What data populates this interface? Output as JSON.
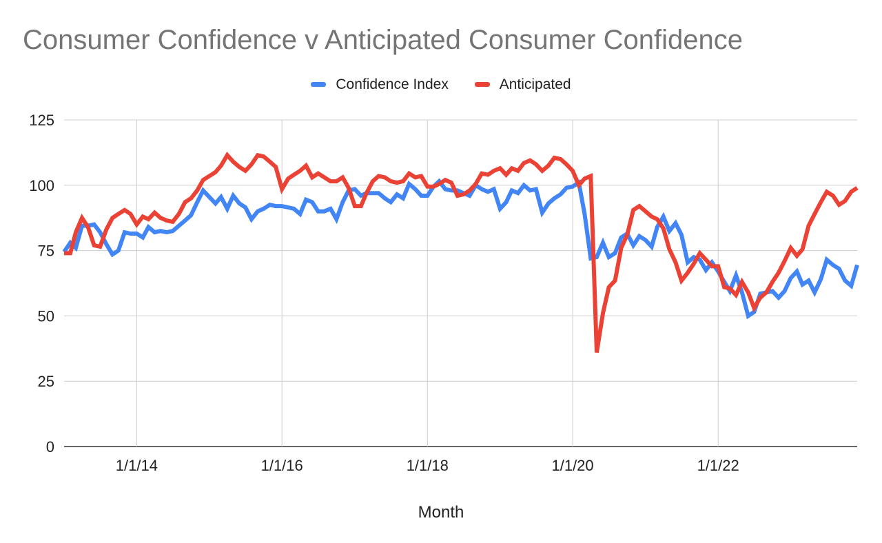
{
  "chart_data": {
    "type": "line",
    "title": "Consumer Confidence v Anticipated Consumer Confidence",
    "xlabel": "Month",
    "ylabel": "",
    "ylim": [
      0,
      125
    ],
    "y_ticks": [
      0,
      25,
      50,
      75,
      100,
      125
    ],
    "x_range": [
      "2013-01-01",
      "2023-12-01"
    ],
    "x_ticks": [
      {
        "date": "2014-01-01",
        "label": "1/1/14"
      },
      {
        "date": "2016-01-01",
        "label": "1/1/16"
      },
      {
        "date": "2018-01-01",
        "label": "1/1/18"
      },
      {
        "date": "2020-01-01",
        "label": "1/1/20"
      },
      {
        "date": "2022-01-01",
        "label": "1/1/22"
      }
    ],
    "grid": true,
    "legend_position": "top",
    "series": [
      {
        "name": "Confidence Index",
        "color": "#4285F4",
        "points": [
          [
            "2013-01-01",
            74.5
          ],
          [
            "2013-02-01",
            78
          ],
          [
            "2013-03-01",
            76
          ],
          [
            "2013-04-01",
            84.5
          ],
          [
            "2013-05-01",
            84.5
          ],
          [
            "2013-06-01",
            85
          ],
          [
            "2013-07-01",
            82
          ],
          [
            "2013-08-01",
            77.5
          ],
          [
            "2013-09-01",
            73.5
          ],
          [
            "2013-10-01",
            75
          ],
          [
            "2013-11-01",
            82
          ],
          [
            "2013-12-01",
            81.5
          ],
          [
            "2014-01-01",
            81.5
          ],
          [
            "2014-02-01",
            80
          ],
          [
            "2014-03-01",
            84
          ],
          [
            "2014-04-01",
            82
          ],
          [
            "2014-05-01",
            82.5
          ],
          [
            "2014-06-01",
            82
          ],
          [
            "2014-07-01",
            82.5
          ],
          [
            "2014-08-01",
            84.5
          ],
          [
            "2014-09-01",
            86.5
          ],
          [
            "2014-10-01",
            88.5
          ],
          [
            "2014-11-01",
            93.5
          ],
          [
            "2014-12-01",
            98
          ],
          [
            "2015-01-01",
            95.5
          ],
          [
            "2015-02-01",
            93
          ],
          [
            "2015-03-01",
            95.5
          ],
          [
            "2015-04-01",
            91
          ],
          [
            "2015-05-01",
            96
          ],
          [
            "2015-06-01",
            93
          ],
          [
            "2015-07-01",
            91.5
          ],
          [
            "2015-08-01",
            87
          ],
          [
            "2015-09-01",
            90
          ],
          [
            "2015-10-01",
            91
          ],
          [
            "2015-11-01",
            92.5
          ],
          [
            "2015-12-01",
            92
          ],
          [
            "2016-01-01",
            92
          ],
          [
            "2016-02-01",
            91.5
          ],
          [
            "2016-03-01",
            91
          ],
          [
            "2016-04-01",
            89
          ],
          [
            "2016-05-01",
            94.5
          ],
          [
            "2016-06-01",
            93.5
          ],
          [
            "2016-07-01",
            90
          ],
          [
            "2016-08-01",
            90
          ],
          [
            "2016-09-01",
            91
          ],
          [
            "2016-10-01",
            87
          ],
          [
            "2016-11-01",
            93.5
          ],
          [
            "2016-12-01",
            98
          ],
          [
            "2017-01-01",
            98.5
          ],
          [
            "2017-02-01",
            96
          ],
          [
            "2017-03-01",
            97
          ],
          [
            "2017-04-01",
            97
          ],
          [
            "2017-05-01",
            97
          ],
          [
            "2017-06-01",
            95
          ],
          [
            "2017-07-01",
            93.5
          ],
          [
            "2017-08-01",
            96.5
          ],
          [
            "2017-09-01",
            95
          ],
          [
            "2017-10-01",
            100.5
          ],
          [
            "2017-11-01",
            98.5
          ],
          [
            "2017-12-01",
            96
          ],
          [
            "2018-01-01",
            96
          ],
          [
            "2018-02-01",
            99.5
          ],
          [
            "2018-03-01",
            101.5
          ],
          [
            "2018-04-01",
            98.5
          ],
          [
            "2018-05-01",
            98
          ],
          [
            "2018-06-01",
            98
          ],
          [
            "2018-07-01",
            97
          ],
          [
            "2018-08-01",
            96
          ],
          [
            "2018-09-01",
            100
          ],
          [
            "2018-10-01",
            98.5
          ],
          [
            "2018-11-01",
            97.5
          ],
          [
            "2018-12-01",
            98.5
          ],
          [
            "2019-01-01",
            91
          ],
          [
            "2019-02-01",
            93.5
          ],
          [
            "2019-03-01",
            98
          ],
          [
            "2019-04-01",
            97
          ],
          [
            "2019-05-01",
            100
          ],
          [
            "2019-06-01",
            98
          ],
          [
            "2019-07-01",
            98.5
          ],
          [
            "2019-08-01",
            89.5
          ],
          [
            "2019-09-01",
            93
          ],
          [
            "2019-10-01",
            95
          ],
          [
            "2019-11-01",
            96.5
          ],
          [
            "2019-12-01",
            99
          ],
          [
            "2020-01-01",
            99.5
          ],
          [
            "2020-02-01",
            101
          ],
          [
            "2020-03-01",
            89
          ],
          [
            "2020-04-01",
            72
          ],
          [
            "2020-05-01",
            72.5
          ],
          [
            "2020-06-01",
            78
          ],
          [
            "2020-07-01",
            72.5
          ],
          [
            "2020-08-01",
            74
          ],
          [
            "2020-09-01",
            80
          ],
          [
            "2020-10-01",
            81.5
          ],
          [
            "2020-11-01",
            77
          ],
          [
            "2020-12-01",
            80.5
          ],
          [
            "2021-01-01",
            79
          ],
          [
            "2021-02-01",
            76.5
          ],
          [
            "2021-03-01",
            84
          ],
          [
            "2021-04-01",
            88
          ],
          [
            "2021-05-01",
            82.5
          ],
          [
            "2021-06-01",
            85.5
          ],
          [
            "2021-07-01",
            81
          ],
          [
            "2021-08-01",
            70.5
          ],
          [
            "2021-09-01",
            72.5
          ],
          [
            "2021-10-01",
            71.5
          ],
          [
            "2021-11-01",
            67.5
          ],
          [
            "2021-12-01",
            70.5
          ],
          [
            "2022-01-01",
            67
          ],
          [
            "2022-02-01",
            63
          ],
          [
            "2022-03-01",
            59.5
          ],
          [
            "2022-04-01",
            65.5
          ],
          [
            "2022-05-01",
            59
          ],
          [
            "2022-06-01",
            50
          ],
          [
            "2022-07-01",
            51.5
          ],
          [
            "2022-08-01",
            58.5
          ],
          [
            "2022-09-01",
            59
          ],
          [
            "2022-10-01",
            59.5
          ],
          [
            "2022-11-01",
            57
          ],
          [
            "2022-12-01",
            59.5
          ],
          [
            "2023-01-01",
            64.5
          ],
          [
            "2023-02-01",
            67
          ],
          [
            "2023-03-01",
            62
          ],
          [
            "2023-04-01",
            63.5
          ],
          [
            "2023-05-01",
            59
          ],
          [
            "2023-06-01",
            64
          ],
          [
            "2023-07-01",
            71.5
          ],
          [
            "2023-08-01",
            69.5
          ],
          [
            "2023-09-01",
            68
          ],
          [
            "2023-10-01",
            63.5
          ],
          [
            "2023-11-01",
            61.5
          ],
          [
            "2023-12-01",
            69.5
          ]
        ]
      },
      {
        "name": "Anticipated",
        "color": "#EA4335",
        "points": [
          [
            "2013-01-01",
            74
          ],
          [
            "2013-02-01",
            74
          ],
          [
            "2013-03-01",
            82
          ],
          [
            "2013-04-01",
            87.5
          ],
          [
            "2013-05-01",
            84
          ],
          [
            "2013-06-01",
            77
          ],
          [
            "2013-07-01",
            76.5
          ],
          [
            "2013-08-01",
            83
          ],
          [
            "2013-09-01",
            87.5
          ],
          [
            "2013-10-01",
            89
          ],
          [
            "2013-11-01",
            90.5
          ],
          [
            "2013-12-01",
            89
          ],
          [
            "2014-01-01",
            85
          ],
          [
            "2014-02-01",
            88
          ],
          [
            "2014-03-01",
            87
          ],
          [
            "2014-04-01",
            89.5
          ],
          [
            "2014-05-01",
            87.5
          ],
          [
            "2014-06-01",
            86.5
          ],
          [
            "2014-07-01",
            86
          ],
          [
            "2014-08-01",
            89
          ],
          [
            "2014-09-01",
            93.5
          ],
          [
            "2014-10-01",
            95
          ],
          [
            "2014-11-01",
            98
          ],
          [
            "2014-12-01",
            102
          ],
          [
            "2015-01-01",
            103.5
          ],
          [
            "2015-02-01",
            105
          ],
          [
            "2015-03-01",
            107.5
          ],
          [
            "2015-04-01",
            111.5
          ],
          [
            "2015-05-01",
            109
          ],
          [
            "2015-06-01",
            107
          ],
          [
            "2015-07-01",
            105.5
          ],
          [
            "2015-08-01",
            108
          ],
          [
            "2015-09-01",
            111.5
          ],
          [
            "2015-10-01",
            111
          ],
          [
            "2015-11-01",
            109
          ],
          [
            "2015-12-01",
            107
          ],
          [
            "2016-01-01",
            98.5
          ],
          [
            "2016-02-01",
            102.5
          ],
          [
            "2016-03-01",
            104
          ],
          [
            "2016-04-01",
            105.5
          ],
          [
            "2016-05-01",
            107.5
          ],
          [
            "2016-06-01",
            103
          ],
          [
            "2016-07-01",
            104.5
          ],
          [
            "2016-08-01",
            103
          ],
          [
            "2016-09-01",
            101.5
          ],
          [
            "2016-10-01",
            101.5
          ],
          [
            "2016-11-01",
            103
          ],
          [
            "2016-12-01",
            99
          ],
          [
            "2017-01-01",
            92
          ],
          [
            "2017-02-01",
            92
          ],
          [
            "2017-03-01",
            97
          ],
          [
            "2017-04-01",
            101.5
          ],
          [
            "2017-05-01",
            103.5
          ],
          [
            "2017-06-01",
            103
          ],
          [
            "2017-07-01",
            101.5
          ],
          [
            "2017-08-01",
            101
          ],
          [
            "2017-09-01",
            101.5
          ],
          [
            "2017-10-01",
            104.5
          ],
          [
            "2017-11-01",
            103
          ],
          [
            "2017-12-01",
            103.5
          ],
          [
            "2018-01-01",
            99.5
          ],
          [
            "2018-02-01",
            99.5
          ],
          [
            "2018-03-01",
            100.5
          ],
          [
            "2018-04-01",
            102
          ],
          [
            "2018-05-01",
            101
          ],
          [
            "2018-06-01",
            96
          ],
          [
            "2018-07-01",
            96.5
          ],
          [
            "2018-08-01",
            98
          ],
          [
            "2018-09-01",
            100.5
          ],
          [
            "2018-10-01",
            104.5
          ],
          [
            "2018-11-01",
            104
          ],
          [
            "2018-12-01",
            105.5
          ],
          [
            "2019-01-01",
            106.5
          ],
          [
            "2019-02-01",
            104
          ],
          [
            "2019-03-01",
            106.5
          ],
          [
            "2019-04-01",
            105.5
          ],
          [
            "2019-05-01",
            108.5
          ],
          [
            "2019-06-01",
            109.5
          ],
          [
            "2019-07-01",
            108
          ],
          [
            "2019-08-01",
            105.5
          ],
          [
            "2019-09-01",
            107.5
          ],
          [
            "2019-10-01",
            110.5
          ],
          [
            "2019-11-01",
            110
          ],
          [
            "2019-12-01",
            108
          ],
          [
            "2020-01-01",
            105.5
          ],
          [
            "2020-02-01",
            100
          ],
          [
            "2020-03-01",
            102.5
          ],
          [
            "2020-04-01",
            103.5
          ],
          [
            "2020-05-01",
            36
          ],
          [
            "2020-06-01",
            51
          ],
          [
            "2020-07-01",
            61
          ],
          [
            "2020-08-01",
            63.5
          ],
          [
            "2020-09-01",
            76
          ],
          [
            "2020-10-01",
            81
          ],
          [
            "2020-11-01",
            90.5
          ],
          [
            "2020-12-01",
            92
          ],
          [
            "2021-01-01",
            90
          ],
          [
            "2021-02-01",
            88
          ],
          [
            "2021-03-01",
            87
          ],
          [
            "2021-04-01",
            83.5
          ],
          [
            "2021-05-01",
            75.5
          ],
          [
            "2021-06-01",
            70.5
          ],
          [
            "2021-07-01",
            63.5
          ],
          [
            "2021-08-01",
            66.5
          ],
          [
            "2021-09-01",
            70
          ],
          [
            "2021-10-01",
            74
          ],
          [
            "2021-11-01",
            71.5
          ],
          [
            "2021-12-01",
            69
          ],
          [
            "2022-01-01",
            69
          ],
          [
            "2022-02-01",
            61
          ],
          [
            "2022-03-01",
            60.5
          ],
          [
            "2022-04-01",
            58
          ],
          [
            "2022-05-01",
            63
          ],
          [
            "2022-06-01",
            59
          ],
          [
            "2022-07-01",
            53
          ],
          [
            "2022-08-01",
            57
          ],
          [
            "2022-09-01",
            59
          ],
          [
            "2022-10-01",
            63
          ],
          [
            "2022-11-01",
            66.5
          ],
          [
            "2022-12-01",
            71
          ],
          [
            "2023-01-01",
            76
          ],
          [
            "2023-02-01",
            73
          ],
          [
            "2023-03-01",
            75.5
          ],
          [
            "2023-04-01",
            84.5
          ],
          [
            "2023-05-01",
            89
          ],
          [
            "2023-06-01",
            93.5
          ],
          [
            "2023-07-01",
            97.5
          ],
          [
            "2023-08-01",
            96
          ],
          [
            "2023-09-01",
            92.5
          ],
          [
            "2023-10-01",
            94
          ],
          [
            "2023-11-01",
            97.5
          ],
          [
            "2023-12-01",
            99
          ]
        ]
      }
    ]
  }
}
